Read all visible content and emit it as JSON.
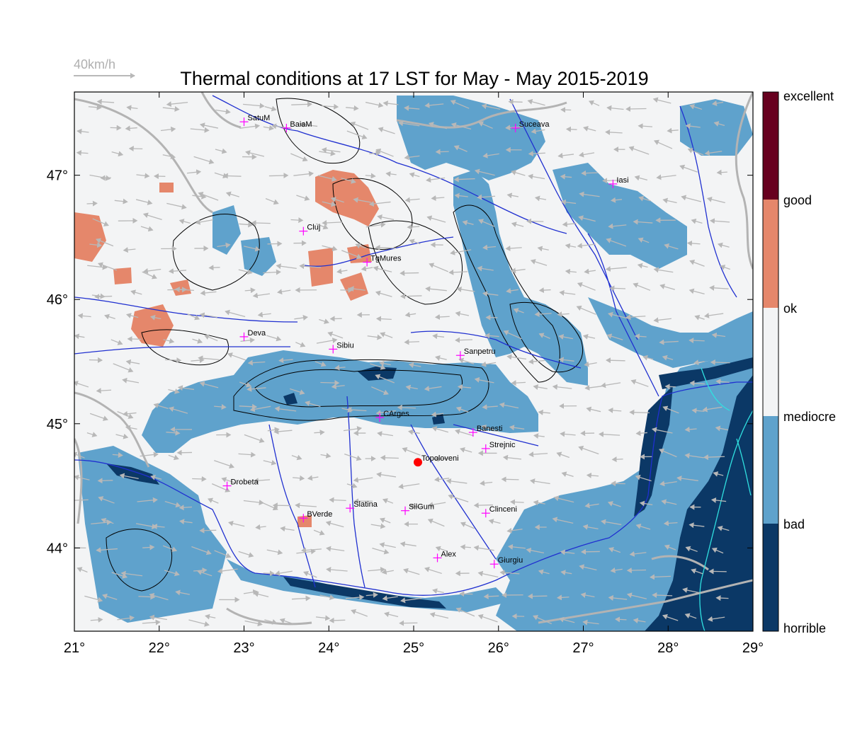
{
  "title": "Thermal conditions at 17 LST for May - May  2015-2019",
  "wind_reference": {
    "label": "40km/h"
  },
  "axes": {
    "x_ticks": [
      "21°",
      "22°",
      "23°",
      "24°",
      "25°",
      "26°",
      "27°",
      "28°",
      "29°"
    ],
    "y_ticks": [
      "44°",
      "45°",
      "46°",
      "47°"
    ],
    "lon_range": [
      21,
      29
    ],
    "lat_range": [
      43.33,
      47.67
    ]
  },
  "colors": {
    "horrible": "#0b3866",
    "bad": "#5fa2cc",
    "mediocre": "#f3f4f5",
    "ok": "#f3f4f5",
    "good": "#e5876b",
    "excellent": "#67001f",
    "wind_arrow": "#b8b8b8",
    "river": "#2030d0",
    "border": "#b3b3b3",
    "coast": "#30e0e0",
    "marker": "#ff00ff",
    "home_marker": "#ff0000"
  },
  "legend": {
    "labels": [
      "excellent",
      "good",
      "ok",
      "mediocre",
      "bad",
      "horrible"
    ]
  },
  "cities": [
    {
      "name": "SatuM",
      "lon": 23.0,
      "lat": 47.43
    },
    {
      "name": "BaiaM",
      "lon": 23.5,
      "lat": 47.38
    },
    {
      "name": "Suceava",
      "lon": 26.2,
      "lat": 47.38
    },
    {
      "name": "Iasi",
      "lon": 27.35,
      "lat": 46.93
    },
    {
      "name": "Cluj",
      "lon": 23.7,
      "lat": 46.55
    },
    {
      "name": "TgMures",
      "lon": 24.45,
      "lat": 46.3
    },
    {
      "name": "Deva",
      "lon": 23.0,
      "lat": 45.7
    },
    {
      "name": "Sibiu",
      "lon": 24.05,
      "lat": 45.6
    },
    {
      "name": "Sanpetru",
      "lon": 25.55,
      "lat": 45.55
    },
    {
      "name": "CArges",
      "lon": 24.6,
      "lat": 45.05
    },
    {
      "name": "Banesti",
      "lon": 25.7,
      "lat": 44.93
    },
    {
      "name": "Strejnic",
      "lon": 25.85,
      "lat": 44.8
    },
    {
      "name": "Topoloveni",
      "lon": 25.05,
      "lat": 44.69
    },
    {
      "name": "Drobeta",
      "lon": 22.8,
      "lat": 44.5
    },
    {
      "name": "Slatina",
      "lon": 24.25,
      "lat": 44.32
    },
    {
      "name": "SilGum",
      "lon": 24.9,
      "lat": 44.3
    },
    {
      "name": "Clinceni",
      "lon": 25.85,
      "lat": 44.28
    },
    {
      "name": "BVerde",
      "lon": 23.7,
      "lat": 44.24
    },
    {
      "name": "Alex",
      "lon": 25.28,
      "lat": 43.92
    },
    {
      "name": "Giurgiu",
      "lon": 25.95,
      "lat": 43.87
    }
  ]
}
